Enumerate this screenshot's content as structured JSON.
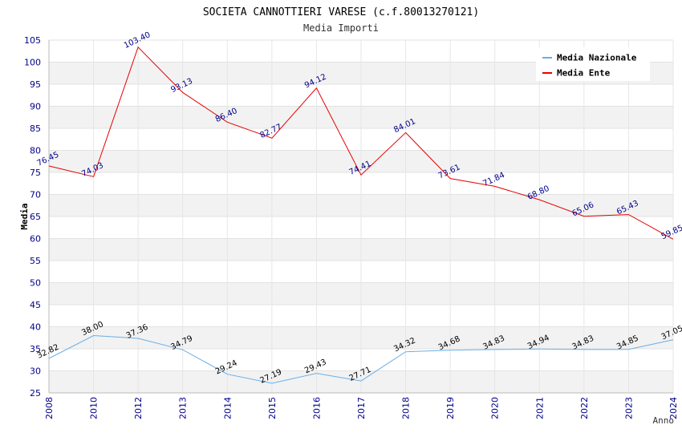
{
  "chart_data": {
    "type": "line",
    "title": "SOCIETA CANNOTTIERI VARESE (c.f.80013270121)",
    "subtitle": "Media Importi",
    "xlabel": "Anno",
    "ylabel": "Media",
    "ylim": [
      25,
      105
    ],
    "ytick_step": 5,
    "grid": true,
    "legend_position": "top-right",
    "categories": [
      "2008",
      "2010",
      "2012",
      "2013",
      "2014",
      "2015",
      "2016",
      "2017",
      "2018",
      "2019",
      "2020",
      "2021",
      "2022",
      "2023",
      "2024"
    ],
    "series": [
      {
        "name": "Media Nazionale",
        "color": "#6aaee6",
        "label_color": "#000000",
        "values": [
          32.82,
          38.0,
          37.36,
          34.79,
          29.24,
          27.19,
          29.43,
          27.71,
          34.32,
          34.68,
          34.83,
          34.94,
          34.83,
          34.85,
          37.05
        ],
        "labels": [
          "32.82",
          "38.00",
          "37.36",
          "34.79",
          "29.24",
          "27.19",
          "29.43",
          "27.71",
          "34.32",
          "34.68",
          "34.83",
          "34.94",
          "34.83",
          "34.85",
          "37.05"
        ]
      },
      {
        "name": "Media Ente",
        "color": "#e60000",
        "label_color": "#00008b",
        "values": [
          76.45,
          74.03,
          103.4,
          93.13,
          86.4,
          82.77,
          94.12,
          74.41,
          84.01,
          73.61,
          71.84,
          68.8,
          65.06,
          65.43,
          59.85
        ],
        "labels": [
          "76.45",
          "74.03",
          "103.40",
          "93.13",
          "86.40",
          "82.77",
          "94.12",
          "74.41",
          "84.01",
          "73.61",
          "71.84",
          "68.80",
          "65.06",
          "65.43",
          "59.85"
        ]
      }
    ]
  }
}
